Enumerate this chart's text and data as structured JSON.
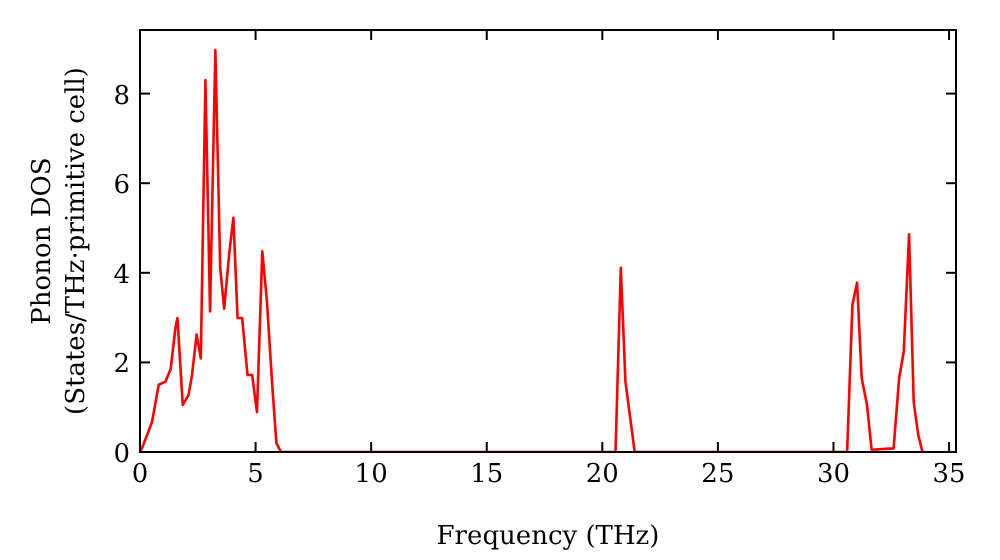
{
  "chart_data": {
    "type": "line",
    "xlabel": "Frequency (THz)",
    "ylabel": "Phonon DOS\n(States/THz·primitive cell)",
    "x": [
      0,
      0.1,
      0.52,
      0.81,
      1.1,
      1.33,
      1.53,
      1.62,
      1.85,
      2.1,
      2.25,
      2.45,
      2.63,
      2.83,
      3.03,
      3.26,
      3.47,
      3.64,
      3.87,
      4.04,
      4.22,
      4.42,
      4.65,
      4.85,
      5.06,
      5.29,
      5.49,
      5.72,
      5.9,
      6.1,
      20.57,
      20.8,
      21.0,
      21.4,
      30.59,
      30.82,
      31.02,
      31.22,
      31.45,
      31.65,
      32.6,
      32.84,
      33.04,
      33.27,
      33.47,
      33.67,
      33.85
    ],
    "series": [
      {
        "color": "#ff0000",
        "values": [
          0,
          0.1,
          0.67,
          1.5,
          1.57,
          1.86,
          2.76,
          2.99,
          1.05,
          1.27,
          1.72,
          2.62,
          2.09,
          8.3,
          3.14,
          8.97,
          4.11,
          3.2,
          4.48,
          5.23,
          2.99,
          2.99,
          1.72,
          1.72,
          0.89,
          4.48,
          3.37,
          1.5,
          0.2,
          0,
          0,
          4.11,
          1.57,
          0,
          0,
          3.29,
          3.78,
          1.65,
          1.05,
          0.05,
          0.08,
          1.65,
          2.24,
          4.86,
          1.12,
          0.37,
          0
        ]
      }
    ],
    "xlim": [
      0,
      35.3
    ],
    "ylim": [
      0,
      9.42
    ],
    "xticks": [
      0,
      5,
      10,
      15,
      20,
      25,
      30,
      35
    ],
    "yticks": [
      0,
      2,
      4,
      6,
      8
    ],
    "grid": false,
    "marker": "none",
    "line_style": "solid"
  }
}
